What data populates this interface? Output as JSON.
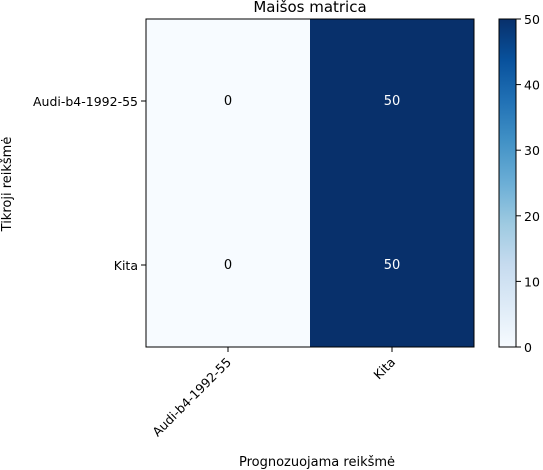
{
  "chart_data": {
    "type": "heatmap",
    "title": "Maišos matrica",
    "xlabel": "Prognozuojama reikšmė",
    "ylabel": "Tikroji reikšmė",
    "x_categories": [
      "Audi-b4-1992-55",
      "Kita"
    ],
    "y_categories": [
      "Audi-b4-1992-55",
      "Kita"
    ],
    "values": [
      [
        0,
        50
      ],
      [
        0,
        50
      ]
    ],
    "value_labels": [
      [
        "0",
        "50"
      ],
      [
        "0",
        "50"
      ]
    ],
    "colorbar": {
      "min": 0,
      "max": 50,
      "ticks": [
        0,
        10,
        20,
        30,
        40,
        50
      ],
      "tick_labels": [
        "0",
        "10",
        "20",
        "30",
        "40",
        "50"
      ],
      "colormap": "Blues",
      "low_color": "#f7fbff",
      "high_color": "#08306b"
    },
    "grid": false
  }
}
